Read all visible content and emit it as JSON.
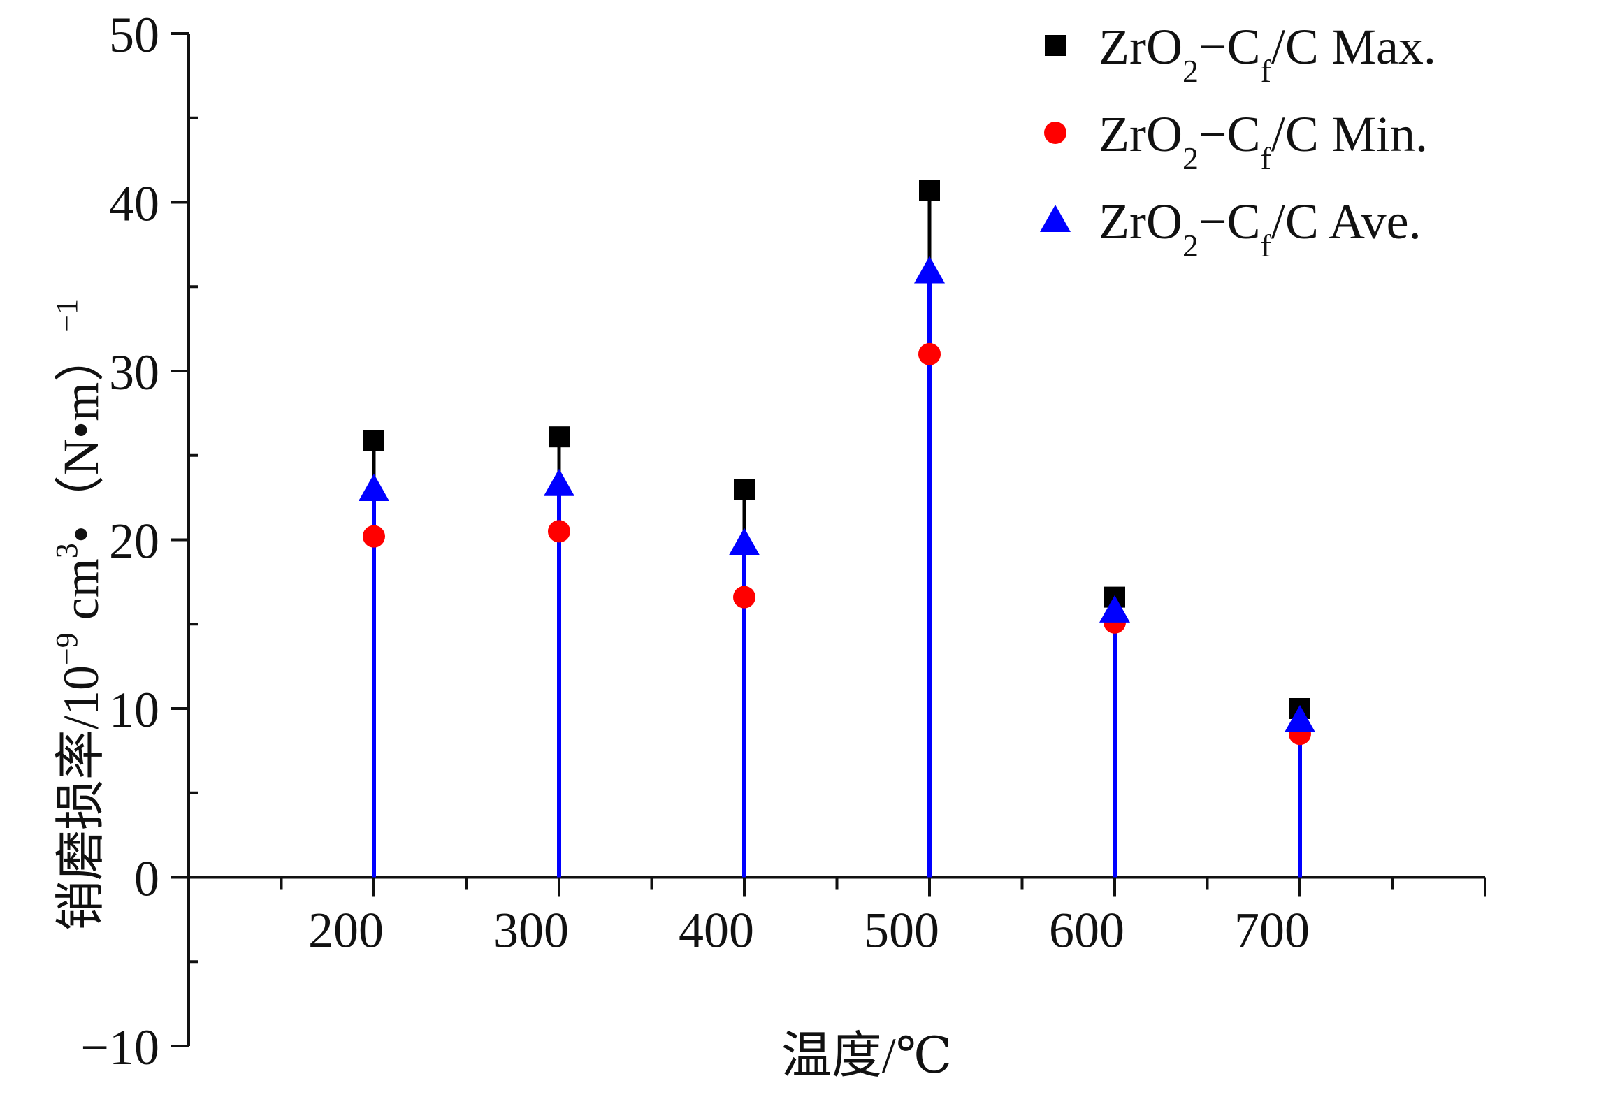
{
  "chart_data": {
    "type": "scatter",
    "xlabel": "温度/℃",
    "ylabel_parts": {
      "main": "销磨损率/10",
      "exp1": "−9",
      "mid": " cm",
      "exp2": "3",
      "tail": "•（N•m）",
      "exp3": "−1"
    },
    "x_ticks": [
      200,
      300,
      400,
      500,
      600,
      700
    ],
    "y_ticks": [
      -10,
      0,
      10,
      20,
      30,
      40,
      50
    ],
    "y_tick_labels": [
      "−10",
      "0",
      "10",
      "20",
      "30",
      "40",
      "50"
    ],
    "xlim": [
      100,
      800
    ],
    "ylim": [
      -10,
      50
    ],
    "grid": false,
    "legend_position": "top-right",
    "colors": {
      "max": "#000000",
      "min": "#ff0000",
      "ave": "#0000ff",
      "axis": "#111111"
    },
    "series": [
      {
        "key": "max",
        "marker": "square",
        "name": {
          "a": "ZrO",
          "s1": "2",
          "b": "−C",
          "s2": "f",
          "c": "/C Max."
        },
        "x": [
          200,
          300,
          400,
          500,
          600,
          700
        ],
        "y": [
          25.9,
          26.1,
          23.0,
          40.7,
          16.6,
          10.0
        ]
      },
      {
        "key": "min",
        "marker": "circle",
        "name": {
          "a": "ZrO",
          "s1": "2",
          "b": "−C",
          "s2": "f",
          "c": "/C Min."
        },
        "x": [
          200,
          300,
          400,
          500,
          600,
          700
        ],
        "y": [
          20.2,
          20.5,
          16.6,
          31.0,
          15.1,
          8.5
        ]
      },
      {
        "key": "ave",
        "marker": "triangle",
        "name": {
          "a": "ZrO",
          "s1": "2",
          "b": "−C",
          "s2": "f",
          "c": "/C Ave."
        },
        "x": [
          200,
          300,
          400,
          500,
          600,
          700
        ],
        "y": [
          23.0,
          23.3,
          19.8,
          35.9,
          15.8,
          9.3
        ]
      }
    ]
  }
}
